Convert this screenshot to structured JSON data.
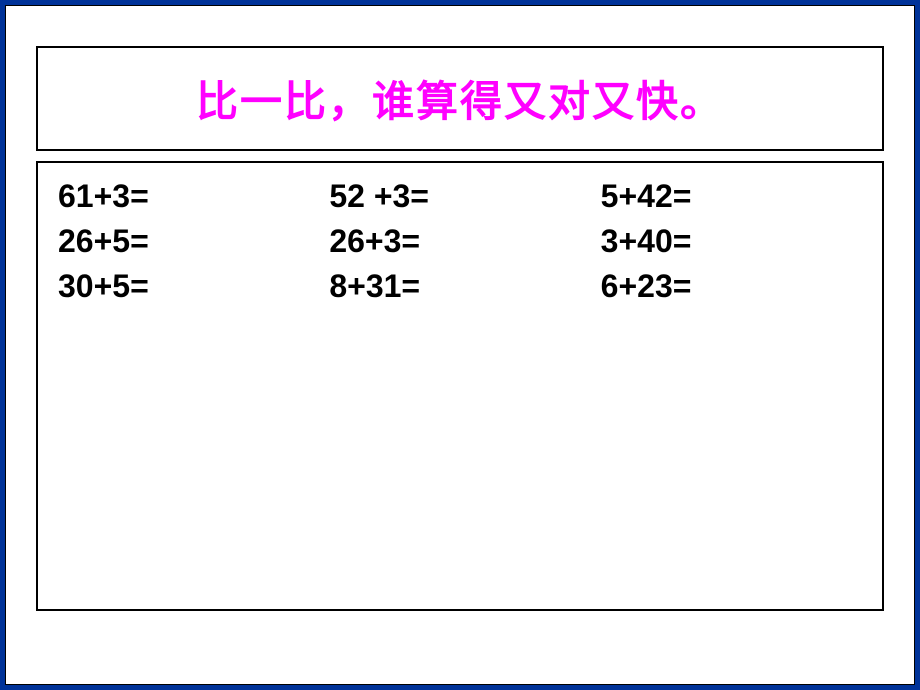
{
  "slide": {
    "title": "比一比，谁算得又对又快。",
    "title_color": "#ff00ff",
    "title_fontsize": 42,
    "background_color": "#003399",
    "slide_background": "#ffffff",
    "border_color": "#000000",
    "problems": {
      "type": "table",
      "columns": 3,
      "rows": 3,
      "text_color": "#000000",
      "fontsize": 32,
      "font_weight": "bold",
      "cells": [
        [
          "61+3=",
          "52 +3=",
          "5+42="
        ],
        [
          "26+5=",
          "26+3=",
          "3+40="
        ],
        [
          "30+5=",
          "8+31=",
          "6+23="
        ]
      ]
    }
  }
}
